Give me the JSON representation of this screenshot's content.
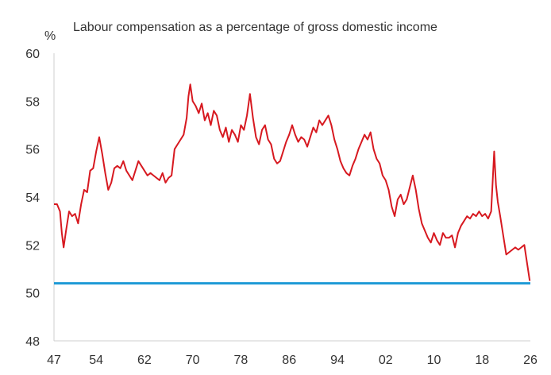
{
  "chart_data": {
    "type": "line",
    "title": "Labour compensation as a percentage of gross domestic income",
    "ylabel": "%",
    "xlabel": "",
    "ylim": [
      48,
      60
    ],
    "xlim": [
      1947,
      2026
    ],
    "y_ticks": [
      "60",
      "58",
      "56",
      "54",
      "52",
      "50",
      "48"
    ],
    "x_ticks": [
      "47",
      "54",
      "62",
      "70",
      "78",
      "86",
      "94",
      "02",
      "10",
      "18",
      "26"
    ],
    "x_tick_years": [
      1947,
      1954,
      1962,
      1970,
      1978,
      1986,
      1994,
      2002,
      2010,
      2018,
      2026
    ],
    "grid": false,
    "series": [
      {
        "color": "#d71920",
        "x": [
          1947.0,
          1947.5,
          1948.0,
          1948.3,
          1948.6,
          1949.0,
          1949.5,
          1950.0,
          1950.5,
          1951.0,
          1951.5,
          1952.0,
          1952.5,
          1953.0,
          1953.5,
          1954.0,
          1954.5,
          1955.0,
          1955.5,
          1956.0,
          1956.5,
          1957.0,
          1957.5,
          1958.0,
          1958.5,
          1959.0,
          1959.5,
          1960.0,
          1960.5,
          1961.0,
          1961.5,
          1962.0,
          1962.5,
          1963.0,
          1963.5,
          1964.0,
          1964.5,
          1965.0,
          1965.5,
          1966.0,
          1966.5,
          1967.0,
          1967.5,
          1968.0,
          1968.5,
          1969.0,
          1969.3,
          1969.6,
          1970.0,
          1970.5,
          1971.0,
          1971.5,
          1972.0,
          1972.5,
          1973.0,
          1973.5,
          1974.0,
          1974.5,
          1975.0,
          1975.5,
          1976.0,
          1976.5,
          1977.0,
          1977.5,
          1978.0,
          1978.5,
          1979.0,
          1979.5,
          1980.0,
          1980.5,
          1981.0,
          1981.5,
          1982.0,
          1982.5,
          1983.0,
          1983.5,
          1984.0,
          1984.5,
          1985.0,
          1985.5,
          1986.0,
          1986.5,
          1987.0,
          1987.5,
          1988.0,
          1988.5,
          1989.0,
          1989.5,
          1990.0,
          1990.5,
          1991.0,
          1991.5,
          1992.0,
          1992.5,
          1993.0,
          1993.5,
          1994.0,
          1994.5,
          1995.0,
          1995.5,
          1996.0,
          1996.5,
          1997.0,
          1997.5,
          1998.0,
          1998.5,
          1999.0,
          1999.5,
          2000.0,
          2000.5,
          2001.0,
          2001.5,
          2002.0,
          2002.5,
          2003.0,
          2003.5,
          2004.0,
          2004.5,
          2005.0,
          2005.5,
          2006.0,
          2006.5,
          2007.0,
          2007.5,
          2008.0,
          2008.5,
          2009.0,
          2009.5,
          2010.0,
          2010.5,
          2011.0,
          2011.5,
          2012.0,
          2012.5,
          2013.0,
          2013.5,
          2014.0,
          2014.5,
          2015.0,
          2015.5,
          2016.0,
          2016.5,
          2017.0,
          2017.5,
          2018.0,
          2018.5,
          2019.0,
          2019.5,
          2020.0,
          2020.3,
          2020.6,
          2021.0,
          2021.5,
          2022.0,
          2022.5,
          2023.0,
          2023.5,
          2024.0,
          2024.5,
          2025.0,
          2025.3,
          2025.6,
          2025.9
        ],
        "y": [
          53.7,
          53.7,
          53.4,
          52.5,
          51.9,
          52.6,
          53.4,
          53.2,
          53.3,
          52.9,
          53.7,
          54.3,
          54.2,
          55.1,
          55.2,
          55.9,
          56.5,
          55.8,
          55.0,
          54.3,
          54.6,
          55.2,
          55.3,
          55.2,
          55.5,
          55.1,
          54.9,
          54.7,
          55.1,
          55.5,
          55.3,
          55.1,
          54.9,
          55.0,
          54.9,
          54.8,
          54.7,
          55.0,
          54.6,
          54.8,
          54.9,
          56.0,
          56.2,
          56.4,
          56.6,
          57.3,
          58.2,
          58.7,
          58.0,
          57.8,
          57.5,
          57.9,
          57.2,
          57.5,
          57.0,
          57.6,
          57.4,
          56.8,
          56.5,
          56.9,
          56.3,
          56.8,
          56.6,
          56.3,
          57.0,
          56.8,
          57.4,
          58.3,
          57.3,
          56.5,
          56.2,
          56.8,
          57.0,
          56.4,
          56.2,
          55.6,
          55.4,
          55.5,
          55.9,
          56.3,
          56.6,
          57.0,
          56.6,
          56.3,
          56.5,
          56.4,
          56.1,
          56.5,
          56.9,
          56.7,
          57.2,
          57.0,
          57.2,
          57.4,
          57.0,
          56.4,
          56.0,
          55.5,
          55.2,
          55.0,
          54.9,
          55.3,
          55.6,
          56.0,
          56.3,
          56.6,
          56.4,
          56.7,
          56.0,
          55.6,
          55.4,
          54.9,
          54.7,
          54.3,
          53.6,
          53.2,
          53.9,
          54.1,
          53.7,
          53.9,
          54.4,
          54.9,
          54.3,
          53.5,
          52.9,
          52.6,
          52.3,
          52.1,
          52.5,
          52.2,
          52.0,
          52.5,
          52.3,
          52.3,
          52.4,
          51.9,
          52.5,
          52.8,
          53.0,
          53.2,
          53.1,
          53.3,
          53.2,
          53.4,
          53.2,
          53.3,
          53.1,
          53.4,
          55.9,
          54.5,
          53.8,
          53.2,
          52.4,
          51.6,
          51.7,
          51.8,
          51.9,
          51.8,
          51.9,
          52.0,
          51.5,
          51.0,
          50.5
        ]
      }
    ],
    "reference_line": {
      "y": 50.4,
      "color": "#1e9ad6"
    }
  }
}
